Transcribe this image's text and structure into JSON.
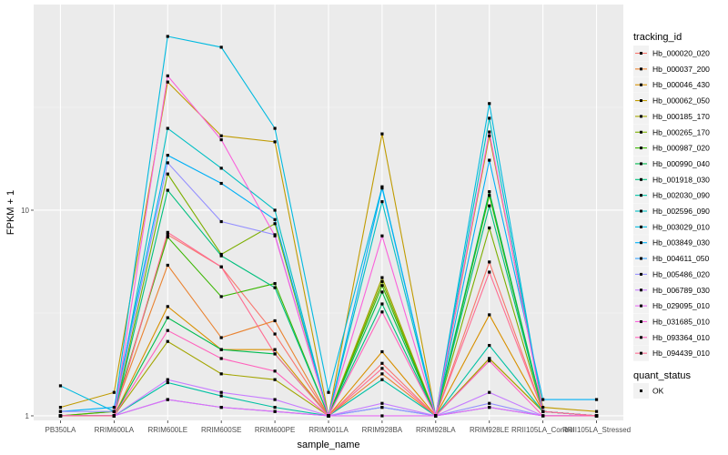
{
  "chart_data": {
    "type": "line",
    "xlabel": "sample_name",
    "ylabel": "FPKM + 1",
    "y_scale": "log10",
    "ylim": [
      0.95,
      100
    ],
    "y_ticks": [
      1,
      10
    ],
    "grid": true,
    "legend_position": "right",
    "categories": [
      "PB350LA",
      "RRIM600LA",
      "RRIM600LE",
      "RRIM600SE",
      "RRIM600PE",
      "RRIM901LA",
      "RRIM928BA",
      "RRIM928LA",
      "RRIM928LE",
      "RRII105LA_Control",
      "RRII105LA_Stressed"
    ],
    "legend": {
      "color_title": "tracking_id",
      "shape_title": "quant_status",
      "shape_entries": [
        "OK"
      ]
    },
    "series": [
      {
        "name": "Hb_000020_020",
        "color": "#F8766D",
        "values": [
          1.0,
          1.0,
          7.6,
          5.3,
          2.5,
          1.0,
          1.8,
          1.0,
          5.6,
          1.05,
          1.0
        ]
      },
      {
        "name": "Hb_000037_200",
        "color": "#EA8331",
        "values": [
          1.0,
          1.05,
          5.4,
          2.4,
          2.9,
          1.0,
          1.6,
          1.0,
          1.9,
          1.05,
          1.0
        ]
      },
      {
        "name": "Hb_000046_430",
        "color": "#D89000",
        "values": [
          1.0,
          1.0,
          3.4,
          2.1,
          2.1,
          1.0,
          2.05,
          1.0,
          3.1,
          1.05,
          1.0
        ]
      },
      {
        "name": "Hb_000062_050",
        "color": "#C09B00",
        "values": [
          1.1,
          1.3,
          42.0,
          23.0,
          21.5,
          1.0,
          23.5,
          1.0,
          23.0,
          1.1,
          1.05
        ]
      },
      {
        "name": "Hb_000185_170",
        "color": "#A3A500",
        "values": [
          1.0,
          1.0,
          2.3,
          1.6,
          1.5,
          1.0,
          4.7,
          1.0,
          1.9,
          1.05,
          1.0
        ]
      },
      {
        "name": "Hb_000265_170",
        "color": "#7CAE00",
        "values": [
          1.0,
          1.0,
          15.0,
          6.1,
          8.6,
          1.0,
          4.5,
          1.0,
          8.2,
          1.05,
          1.0
        ]
      },
      {
        "name": "Hb_000987_020",
        "color": "#39B600",
        "values": [
          1.0,
          1.05,
          7.4,
          3.8,
          4.4,
          1.0,
          4.3,
          1.0,
          11.8,
          1.05,
          1.0
        ]
      },
      {
        "name": "Hb_000990_040",
        "color": "#00BB4E",
        "values": [
          1.0,
          1.0,
          3.0,
          2.1,
          2.0,
          1.0,
          4.0,
          1.0,
          12.3,
          1.05,
          1.0
        ]
      },
      {
        "name": "Hb_001918_030",
        "color": "#00BF7D",
        "values": [
          1.0,
          1.0,
          12.5,
          6.0,
          4.2,
          1.0,
          3.5,
          1.0,
          10.5,
          1.05,
          1.0
        ]
      },
      {
        "name": "Hb_002030_090",
        "color": "#00C1A3",
        "values": [
          1.0,
          1.0,
          1.45,
          1.25,
          1.1,
          1.0,
          1.5,
          1.0,
          2.2,
          1.05,
          1.0
        ]
      },
      {
        "name": "Hb_002596_090",
        "color": "#00BFC4",
        "values": [
          1.0,
          1.0,
          25.0,
          16.0,
          10.0,
          1.0,
          11.0,
          1.0,
          28.0,
          1.05,
          1.0
        ]
      },
      {
        "name": "Hb_003029_010",
        "color": "#00BAE0",
        "values": [
          1.4,
          1.05,
          70.0,
          62.0,
          25.0,
          1.3,
          13.0,
          1.0,
          33.0,
          1.05,
          1.0
        ]
      },
      {
        "name": "Hb_003849_030",
        "color": "#00B0F6",
        "values": [
          1.05,
          1.1,
          18.5,
          13.5,
          9.0,
          1.0,
          12.8,
          1.0,
          17.5,
          1.2,
          1.2
        ]
      },
      {
        "name": "Hb_004611_050",
        "color": "#35A2FF",
        "values": [
          1.0,
          1.0,
          1.2,
          1.1,
          1.05,
          1.0,
          1.1,
          1.0,
          1.1,
          1.0,
          1.0
        ]
      },
      {
        "name": "Hb_005486_020",
        "color": "#9590FF",
        "values": [
          1.05,
          1.05,
          17.0,
          8.8,
          7.6,
          1.0,
          1.1,
          1.0,
          1.15,
          1.0,
          1.0
        ]
      },
      {
        "name": "Hb_006789_030",
        "color": "#C77CFF",
        "values": [
          1.0,
          1.0,
          1.5,
          1.3,
          1.2,
          1.0,
          1.15,
          1.0,
          1.3,
          1.0,
          1.0
        ]
      },
      {
        "name": "Hb_029095_010",
        "color": "#E76BF3",
        "values": [
          1.0,
          1.0,
          1.2,
          1.1,
          1.05,
          1.0,
          1.0,
          1.0,
          1.1,
          1.0,
          1.0
        ]
      },
      {
        "name": "Hb_031685_010",
        "color": "#FA62DB",
        "values": [
          1.0,
          1.0,
          45.0,
          22.0,
          7.5,
          1.0,
          7.5,
          1.0,
          24.0,
          1.05,
          1.0
        ]
      },
      {
        "name": "Hb_093364_010",
        "color": "#FF62BC",
        "values": [
          1.0,
          1.0,
          2.6,
          1.9,
          1.65,
          1.0,
          3.2,
          1.0,
          1.85,
          1.0,
          1.0
        ]
      },
      {
        "name": "Hb_094439_010",
        "color": "#FF6C91",
        "values": [
          1.0,
          1.0,
          7.8,
          5.3,
          2.0,
          1.0,
          1.7,
          1.0,
          5.0,
          1.05,
          1.0
        ]
      }
    ]
  }
}
